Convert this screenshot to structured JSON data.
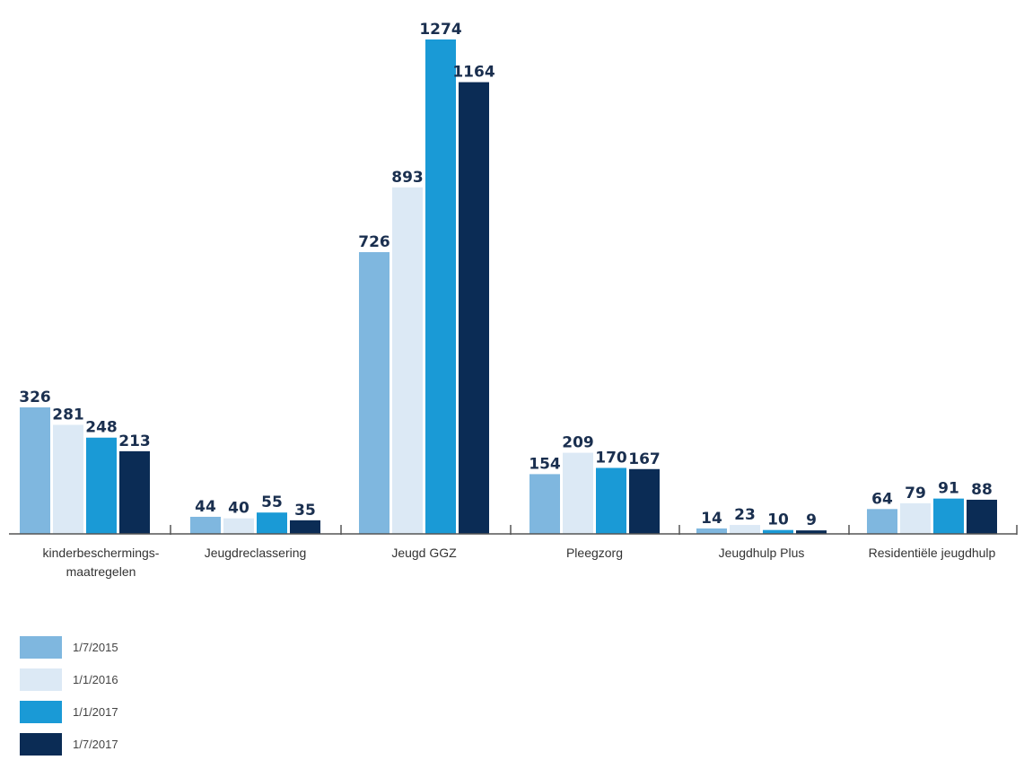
{
  "chart_data": {
    "type": "bar",
    "title": "",
    "xlabel": "",
    "ylabel": "",
    "ylim": [
      0,
      1300
    ],
    "grid": false,
    "legend_position": "bottom-left",
    "categories": [
      [
        "kinderbeschermings-",
        "maatregelen"
      ],
      [
        "Jeugdreclassering"
      ],
      [
        "Jeugd GGZ"
      ],
      [
        "Pleegzorg"
      ],
      [
        "Jeugdhulp Plus"
      ],
      [
        "Residentiële jeugdhulp"
      ]
    ],
    "series": [
      {
        "name": "1/7/2015",
        "color": "#7fb7df",
        "values": [
          326,
          44,
          726,
          154,
          14,
          64
        ]
      },
      {
        "name": "1/1/2016",
        "color": "#dce9f5",
        "values": [
          281,
          40,
          893,
          209,
          23,
          79
        ]
      },
      {
        "name": "1/1/2017",
        "color": "#1a9ad6",
        "values": [
          248,
          55,
          1274,
          170,
          10,
          91
        ]
      },
      {
        "name": "1/7/2017",
        "color": "#0b2c55",
        "values": [
          213,
          35,
          1164,
          167,
          9,
          88
        ]
      }
    ]
  }
}
